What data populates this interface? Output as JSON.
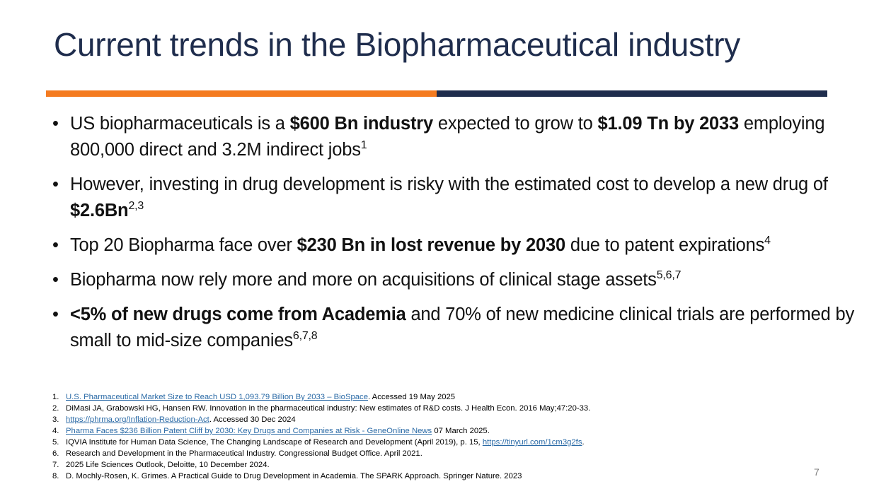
{
  "title": "Current trends in the Biopharmaceutical industry",
  "bullets": [
    {
      "parts": [
        {
          "text": "US biopharmaceuticals is a "
        },
        {
          "text": "$600 Bn industry",
          "bold": true
        },
        {
          "text": " expected to grow to "
        },
        {
          "text": "$1.09 Tn by 2033",
          "bold": true
        },
        {
          "text": " employing 800,000 direct and 3.2M indirect jobs"
        },
        {
          "text": "1",
          "sup": true
        }
      ]
    },
    {
      "parts": [
        {
          "text": "However, investing in drug development is risky with the estimated cost to develop a new drug of "
        },
        {
          "text": "$2.6Bn",
          "bold": true
        },
        {
          "text": "2,3",
          "sup": true
        }
      ]
    },
    {
      "parts": [
        {
          "text": "Top 20 Biopharma face over "
        },
        {
          "text": "$230 Bn in lost revenue by 2030",
          "bold": true
        },
        {
          "text": " due to patent expirations"
        },
        {
          "text": "4",
          "sup": true
        }
      ]
    },
    {
      "parts": [
        {
          "text": "Biopharma now rely more and more on acquisitions of clinical stage assets"
        },
        {
          "text": "5,6,7",
          "sup": true
        }
      ]
    },
    {
      "parts": [
        {
          "text": "<5% of new drugs come from Academia",
          "bold": true
        },
        {
          "text": " and 70% of new medicine clinical trials are performed by small to mid-size companies"
        },
        {
          "text": "6,7,8",
          "sup": true
        }
      ]
    }
  ],
  "references": [
    {
      "num": "1.",
      "parts": [
        {
          "text": "U.S. Pharmaceutical Market Size to Reach USD 1,093.79 Billion By 2033 – BioSpace",
          "link": true
        },
        {
          "text": ". Accessed 19 May 2025"
        }
      ]
    },
    {
      "num": "2.",
      "parts": [
        {
          "text": "DiMasi JA, Grabowski HG, Hansen RW. Innovation in the pharmaceutical industry: New estimates of R&D costs. J Health Econ. 2016 May;47:20-33."
        }
      ]
    },
    {
      "num": "3.",
      "parts": [
        {
          "text": "https://phrma.org/Inflation-Reduction-Act",
          "link": true
        },
        {
          "text": ". Accessed 30 Dec 2024"
        }
      ]
    },
    {
      "num": "4.",
      "parts": [
        {
          "text": "Pharma Faces $236 Billion Patent Cliff by 2030: Key Drugs and Companies at Risk - GeneOnline News",
          "link": true
        },
        {
          "text": " 07 March 2025."
        }
      ]
    },
    {
      "num": "5.",
      "parts": [
        {
          "text": "IQVIA Institute for Human Data Science, The Changing Landscape of Research and Development (April 2019), p. 15, "
        },
        {
          "text": "https://tinyurl.com/1cm3g2fs",
          "link": true
        },
        {
          "text": "."
        }
      ]
    },
    {
      "num": "6.",
      "parts": [
        {
          "text": "Research and Development in the Pharmaceutical Industry. Congressional Budget Office. April 2021."
        }
      ]
    },
    {
      "num": "7.",
      "parts": [
        {
          "text": "2025 Life Sciences Outlook, Deloitte, 10 December 2024."
        }
      ]
    },
    {
      "num": "8.",
      "parts": [
        {
          "text": "D. Mochly-Rosen, K. Grimes. A Practical Guide to Drug Development in Academia. The SPARK Approach.  Springer Nature. 2023"
        }
      ]
    }
  ],
  "page_number": "7",
  "colors": {
    "title": "#1f2d4d",
    "rule_left": "#f47b20",
    "rule_right": "#1f2d4d",
    "link": "#2a6aa6"
  }
}
